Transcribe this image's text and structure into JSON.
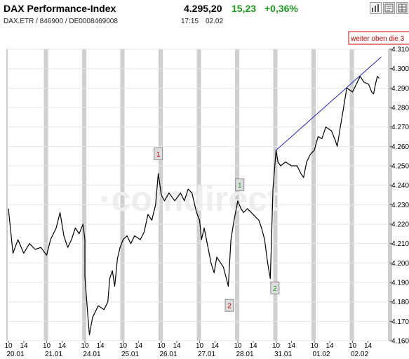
{
  "header": {
    "title": "DAX Performance-Index",
    "identifiers": "DAX.ETR / 846900 / DE0008469008",
    "price": "4.295,20",
    "change": "15,23",
    "change_pct": "+0,36%",
    "time": "17:15",
    "date": "02.02",
    "positive_color": "#1a9a1a"
  },
  "toolbar": {
    "icons": [
      "bar-chart-icon",
      "news-icon",
      "table-icon"
    ]
  },
  "watermark": "·comdirect",
  "chart_data": {
    "type": "line",
    "title": "",
    "xlabel": "",
    "ylabel": "",
    "ylim": [
      4160,
      4310
    ],
    "y_ticks": [
      "4.160",
      "4.170",
      "4.180",
      "4.190",
      "4.200",
      "4.210",
      "4.220",
      "4.230",
      "4.240",
      "4.250",
      "4.260",
      "4.270",
      "4.280",
      "4.290",
      "4.300",
      "4.310"
    ],
    "days": [
      "20.01",
      "21.01",
      "24.01",
      "25.01",
      "26.01",
      "27.01",
      "28.01",
      "31.01",
      "01.02",
      "02.02"
    ],
    "hour_labels": [
      "10",
      "14"
    ],
    "grid": true,
    "series": [
      {
        "points": [
          [
            0.0,
            4228
          ],
          [
            0.12,
            4205
          ],
          [
            0.25,
            4212
          ],
          [
            0.4,
            4205
          ],
          [
            0.55,
            4210
          ],
          [
            0.7,
            4207
          ],
          [
            0.85,
            4208
          ],
          [
            1.0,
            4204
          ],
          [
            1.1,
            4212
          ],
          [
            1.25,
            4218
          ],
          [
            1.35,
            4226
          ],
          [
            1.45,
            4214
          ],
          [
            1.55,
            4208
          ],
          [
            1.65,
            4212
          ],
          [
            1.75,
            4218
          ],
          [
            1.85,
            4215
          ],
          [
            1.95,
            4220
          ],
          [
            2.0,
            4212
          ],
          [
            2.0,
            4193
          ],
          [
            2.08,
            4172
          ],
          [
            2.12,
            4163
          ],
          [
            2.2,
            4172
          ],
          [
            2.35,
            4178
          ],
          [
            2.5,
            4176
          ],
          [
            2.6,
            4180
          ],
          [
            2.65,
            4192
          ],
          [
            2.72,
            4196
          ],
          [
            2.78,
            4188
          ],
          [
            2.85,
            4202
          ],
          [
            2.92,
            4208
          ],
          [
            3.0,
            4212
          ],
          [
            3.1,
            4214
          ],
          [
            3.2,
            4210
          ],
          [
            3.3,
            4214
          ],
          [
            3.45,
            4212
          ],
          [
            3.55,
            4216
          ],
          [
            3.65,
            4225
          ],
          [
            3.75,
            4222
          ],
          [
            3.85,
            4230
          ],
          [
            3.92,
            4246
          ],
          [
            4.0,
            4235
          ],
          [
            4.08,
            4232
          ],
          [
            4.2,
            4236
          ],
          [
            4.35,
            4232
          ],
          [
            4.5,
            4236
          ],
          [
            4.6,
            4232
          ],
          [
            4.7,
            4238
          ],
          [
            4.8,
            4236
          ],
          [
            4.92,
            4226
          ],
          [
            5.0,
            4222
          ],
          [
            5.05,
            4212
          ],
          [
            5.12,
            4218
          ],
          [
            5.2,
            4210
          ],
          [
            5.3,
            4200
          ],
          [
            5.38,
            4195
          ],
          [
            5.45,
            4203
          ],
          [
            5.55,
            4200
          ],
          [
            5.62,
            4198
          ],
          [
            5.7,
            4192
          ],
          [
            5.75,
            4188
          ],
          [
            5.82,
            4212
          ],
          [
            5.9,
            4222
          ],
          [
            6.0,
            4232
          ],
          [
            6.08,
            4228
          ],
          [
            6.15,
            4226
          ],
          [
            6.25,
            4228
          ],
          [
            6.35,
            4226
          ],
          [
            6.45,
            4224
          ],
          [
            6.55,
            4222
          ],
          [
            6.62,
            4218
          ],
          [
            6.7,
            4212
          ],
          [
            6.78,
            4200
          ],
          [
            6.85,
            4192
          ],
          [
            6.88,
            4212
          ],
          [
            6.92,
            4238
          ],
          [
            7.0,
            4258
          ],
          [
            7.05,
            4252
          ],
          [
            7.12,
            4250
          ],
          [
            7.25,
            4252
          ],
          [
            7.4,
            4250
          ],
          [
            7.55,
            4250
          ],
          [
            7.65,
            4246
          ],
          [
            7.72,
            4244
          ],
          [
            7.8,
            4252
          ],
          [
            7.9,
            4256
          ],
          [
            8.0,
            4258
          ],
          [
            8.1,
            4265
          ],
          [
            8.2,
            4264
          ],
          [
            8.3,
            4270
          ],
          [
            8.45,
            4268
          ],
          [
            8.55,
            4263
          ],
          [
            8.6,
            4260
          ],
          [
            8.68,
            4270
          ],
          [
            8.75,
            4278
          ],
          [
            8.85,
            4290
          ],
          [
            9.0,
            4288
          ],
          [
            9.1,
            4292
          ],
          [
            9.2,
            4296
          ],
          [
            9.3,
            4293
          ],
          [
            9.42,
            4292
          ],
          [
            9.5,
            4288
          ],
          [
            9.55,
            4287
          ],
          [
            9.6,
            4292
          ],
          [
            9.65,
            4296
          ],
          [
            9.7,
            4295
          ]
        ]
      }
    ],
    "trendline": {
      "from": [
        7.0,
        4258
      ],
      "to": [
        9.75,
        4306
      ]
    },
    "annotations": [
      {
        "label": "1",
        "x": 3.92,
        "y": 4256,
        "color": "#cc0000"
      },
      {
        "label": "1",
        "x": 6.05,
        "y": 4240,
        "color": "#1a9a1a"
      },
      {
        "label": "2",
        "x": 5.78,
        "y": 4178,
        "color": "#cc0000"
      },
      {
        "label": "2",
        "x": 6.97,
        "y": 4187,
        "color": "#1a9a1a"
      }
    ],
    "offscreen_note": "weiter oben die 3"
  }
}
